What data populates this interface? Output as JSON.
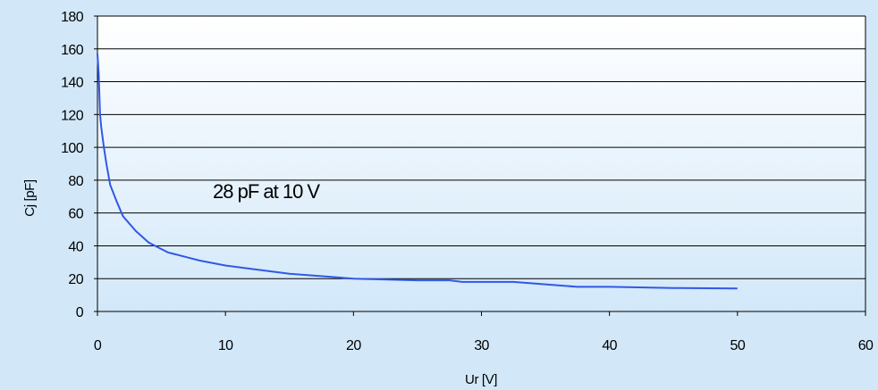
{
  "chart_data": {
    "type": "line",
    "title": "",
    "xlabel": "Ur [V]",
    "ylabel": "Cj [pF]",
    "xlim": [
      0,
      60
    ],
    "ylim": [
      0,
      180
    ],
    "xticks": [
      0,
      10,
      20,
      30,
      40,
      50,
      60
    ],
    "yticks": [
      0,
      20,
      40,
      60,
      80,
      100,
      120,
      140,
      160,
      180
    ],
    "grid": "horizontal",
    "legend": "none",
    "annotation": "28 pF at 10 V",
    "colors": {
      "line": "#3158e6",
      "background": "#d2e8f9",
      "plot_top": "#ffffff",
      "plot_bottom": "#d2e8f9",
      "grid": "#000000"
    },
    "series": [
      {
        "x": [
          0,
          0.1,
          0.2,
          0.3,
          0.5,
          0.7,
          1,
          1.5,
          2,
          3,
          4,
          5,
          5.5,
          6,
          7,
          8,
          10,
          12,
          15,
          20,
          25,
          27.5,
          28.5,
          32.5,
          37.5,
          40,
          45,
          50
        ],
        "y": [
          157,
          145,
          120,
          112,
          100,
          90,
          77,
          67,
          58,
          49,
          42,
          38,
          36,
          35,
          33,
          31,
          28,
          26,
          23,
          20,
          19,
          19,
          18,
          18,
          15,
          15,
          14.3,
          14
        ]
      }
    ]
  }
}
